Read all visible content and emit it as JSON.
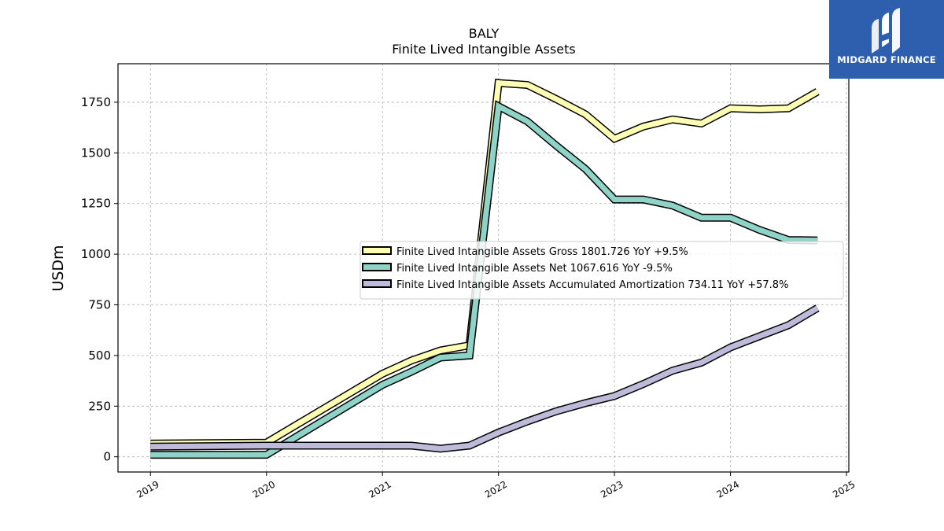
{
  "chart_data": {
    "type": "line",
    "title": "BALY",
    "subtitle": "Finite Lived Intangible Assets",
    "ylabel": "USDm",
    "xlabel": "",
    "xlim": [
      2018.72,
      2025.02
    ],
    "ylim": [
      -75,
      1940
    ],
    "x_ticks": [
      2019,
      2020,
      2021,
      2022,
      2023,
      2024,
      2025
    ],
    "x_tick_labels": [
      "2019",
      "2020",
      "2021",
      "2022",
      "2023",
      "2024",
      "2025"
    ],
    "y_ticks": [
      0,
      250,
      500,
      750,
      1000,
      1250,
      1500,
      1750
    ],
    "y_tick_labels": [
      "0",
      "250",
      "500",
      "750",
      "1000",
      "1250",
      "1500",
      "1750"
    ],
    "grid": true,
    "legend_placement": "center-right",
    "series": [
      {
        "name": "Finite Lived Intangible Assets Gross  1801.726 YoY +9.5%",
        "color": "#ffffb3",
        "x": [
          2019.0,
          2020.0,
          2021.0,
          2021.25,
          2021.5,
          2021.75,
          2022.0,
          2022.25,
          2022.5,
          2022.75,
          2023.0,
          2023.25,
          2023.5,
          2023.75,
          2024.0,
          2024.25,
          2024.5,
          2024.75
        ],
        "y": [
          65,
          70,
          410,
          475,
          525,
          550,
          1845,
          1835,
          1765,
          1690,
          1570,
          1630,
          1665,
          1645,
          1720,
          1715,
          1720,
          1802
        ]
      },
      {
        "name": "Finite Lived Intangible Assets Net  1067.616 YoY -9.5%",
        "color": "#8dd3c7",
        "x": [
          2019.0,
          2020.0,
          2021.0,
          2021.25,
          2021.5,
          2021.75,
          2022.0,
          2022.25,
          2022.5,
          2022.75,
          2023.0,
          2023.25,
          2023.5,
          2023.75,
          2024.0,
          2024.25,
          2024.5,
          2024.75
        ],
        "y": [
          10,
          10,
          355,
          420,
          490,
          500,
          1730,
          1655,
          1535,
          1420,
          1270,
          1270,
          1240,
          1180,
          1180,
          1120,
          1070,
          1068
        ]
      },
      {
        "name": "Finite Lived Intangible Assets Accumulated Amortization  734.11 YoY +57.8%",
        "color": "#bebada",
        "x": [
          2019.0,
          2020.0,
          2021.0,
          2021.25,
          2021.5,
          2021.75,
          2022.0,
          2022.25,
          2022.5,
          2022.75,
          2023.0,
          2023.25,
          2023.5,
          2023.75,
          2024.0,
          2024.25,
          2024.5,
          2024.75
        ],
        "y": [
          50,
          55,
          55,
          55,
          40,
          55,
          120,
          175,
          225,
          265,
          300,
          360,
          425,
          465,
          540,
          595,
          650,
          734
        ]
      }
    ]
  },
  "logo": {
    "text": "MIDGARD FINANCE",
    "background": "#2e5fae"
  }
}
